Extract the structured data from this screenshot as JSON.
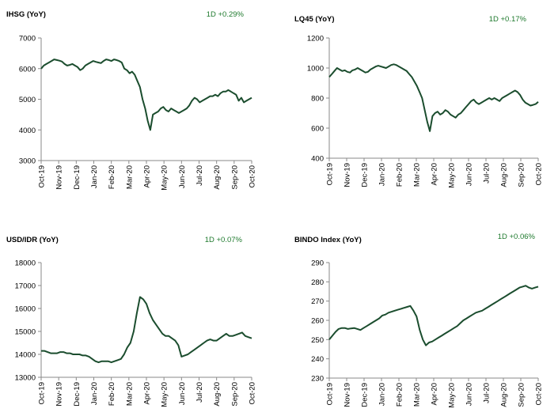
{
  "chart_data": [
    {
      "type": "line",
      "title": "IHSG (YoY)",
      "change_label": "1D +0.29%",
      "x_ticks": [
        "Oct-19",
        "Nov-19",
        "Dec-19",
        "Jan-20",
        "Feb-20",
        "Mar-20",
        "Apr-20",
        "May-20",
        "Jun-20",
        "Jul-20",
        "Aug-20",
        "Sep-20",
        "Oct-20"
      ],
      "y_ticks": [
        "3000",
        "4000",
        "5000",
        "6000",
        "7000"
      ],
      "ylim": [
        3000,
        7000
      ],
      "grid": false,
      "line_color": "#1b4d2e",
      "series": [
        {
          "values": [
            6000,
            6100,
            6150,
            6200,
            6250,
            6300,
            6280,
            6260,
            6230,
            6150,
            6100,
            6120,
            6150,
            6100,
            6050,
            5950,
            6000,
            6100,
            6150,
            6200,
            6250,
            6220,
            6200,
            6180,
            6250,
            6300,
            6280,
            6250,
            6300,
            6280,
            6250,
            6200,
            6000,
            5950,
            5850,
            5900,
            5800,
            5600,
            5400,
            5000,
            4700,
            4300,
            4000,
            4500,
            4550,
            4600,
            4700,
            4750,
            4650,
            4600,
            4700,
            4650,
            4600,
            4550,
            4600,
            4650,
            4700,
            4800,
            4950,
            5050,
            5000,
            4900,
            4950,
            5000,
            5050,
            5100,
            5100,
            5150,
            5100,
            5200,
            5250,
            5250,
            5300,
            5250,
            5200,
            5150,
            4950,
            5050,
            4900,
            4950,
            5000,
            5050
          ]
        }
      ]
    },
    {
      "type": "line",
      "title": "LQ45 (YoY)",
      "change_label": "1D +0.17%",
      "x_ticks": [
        "Oct-19",
        "Nov-19",
        "Dec-19",
        "Jan-20",
        "Feb-20",
        "Mar-20",
        "Apr-20",
        "May-20",
        "Jun-20",
        "Jul-20",
        "Aug-20",
        "Sep-20",
        "Oct-20"
      ],
      "y_ticks": [
        "400",
        "600",
        "800",
        "1000",
        "1200"
      ],
      "ylim": [
        400,
        1200
      ],
      "grid": false,
      "line_color": "#1b4d2e",
      "series": [
        {
          "values": [
            940,
            960,
            980,
            1000,
            990,
            980,
            985,
            975,
            970,
            985,
            990,
            1000,
            990,
            980,
            970,
            975,
            990,
            1000,
            1010,
            1015,
            1010,
            1005,
            1000,
            1010,
            1020,
            1025,
            1020,
            1010,
            1000,
            990,
            980,
            960,
            940,
            910,
            880,
            840,
            800,
            720,
            640,
            580,
            680,
            700,
            710,
            690,
            700,
            720,
            710,
            690,
            680,
            670,
            690,
            700,
            720,
            740,
            760,
            780,
            790,
            770,
            760,
            770,
            780,
            790,
            800,
            790,
            800,
            790,
            780,
            800,
            810,
            820,
            830,
            840,
            850,
            840,
            820,
            790,
            770,
            760,
            750,
            755,
            760,
            775
          ]
        }
      ]
    },
    {
      "type": "line",
      "title": "USD/IDR  (YoY)",
      "change_label": "1D +0.07%",
      "x_ticks": [
        "Oct-19",
        "Nov-19",
        "Dec-19",
        "Jan-20",
        "Feb-20",
        "Mar-20",
        "Apr-20",
        "May-20",
        "Jun-20",
        "Jul-20",
        "Aug-20",
        "Sep-20",
        "Oct-20"
      ],
      "y_ticks": [
        "13000",
        "14000",
        "15000",
        "16000",
        "17000",
        "18000"
      ],
      "ylim": [
        13000,
        18000
      ],
      "grid": false,
      "line_color": "#1b4d2e",
      "series": [
        {
          "values": [
            14150,
            14150,
            14100,
            14050,
            14050,
            14050,
            14100,
            14100,
            14050,
            14050,
            14000,
            14000,
            14000,
            13950,
            13950,
            13900,
            13800,
            13700,
            13650,
            13700,
            13700,
            13700,
            13650,
            13700,
            13750,
            13800,
            14000,
            14300,
            14500,
            15000,
            15800,
            16500,
            16400,
            16200,
            15800,
            15500,
            15300,
            15100,
            14900,
            14800,
            14800,
            14700,
            14600,
            14400,
            13900,
            13950,
            14000,
            14100,
            14200,
            14300,
            14400,
            14500,
            14600,
            14650,
            14600,
            14600,
            14700,
            14800,
            14900,
            14800,
            14800,
            14850,
            14900,
            14950,
            14800,
            14750,
            14700
          ]
        }
      ]
    },
    {
      "type": "line",
      "title": "BINDO Index (YoY)",
      "change_label": "1D +0.06%",
      "x_ticks": [
        "Oct-19",
        "Nov-19",
        "Dec-19",
        "Jan-20",
        "Feb-20",
        "Mar-20",
        "Apr-20",
        "May-20",
        "Jun-20",
        "Jul-20",
        "Aug-20",
        "Sep-20",
        "Oct-20"
      ],
      "y_ticks": [
        "230",
        "240",
        "250",
        "260",
        "270",
        "280",
        "290"
      ],
      "ylim": [
        230,
        290
      ],
      "grid": false,
      "line_color": "#1b4d2e",
      "series": [
        {
          "values": [
            250,
            252,
            254,
            255.5,
            256,
            256,
            255.5,
            255.8,
            256,
            255.5,
            255,
            256,
            257,
            258,
            259,
            260,
            261,
            262.5,
            263,
            264,
            264.5,
            265,
            265.5,
            266,
            266.5,
            267,
            267.5,
            265,
            262,
            255,
            250,
            247,
            248.5,
            249,
            250,
            251,
            252,
            253,
            254,
            255,
            256,
            257,
            258.5,
            260,
            261,
            262,
            263,
            264,
            264.5,
            265,
            266,
            267,
            268,
            269,
            270,
            271,
            272,
            273,
            274,
            275,
            276,
            277,
            277.5,
            278,
            277,
            276.5,
            277,
            277.5
          ]
        }
      ]
    }
  ]
}
